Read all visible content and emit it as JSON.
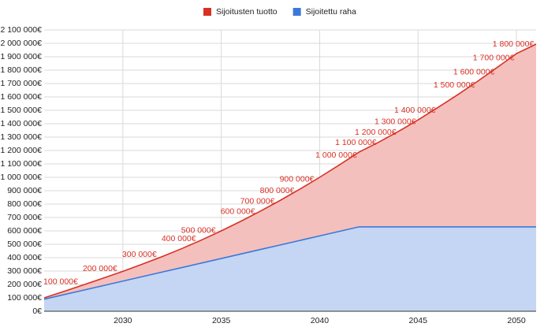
{
  "chart_data": {
    "type": "area",
    "x": [
      2026,
      2027,
      2028,
      2029,
      2030,
      2031,
      2032,
      2033,
      2034,
      2035,
      2036,
      2037,
      2038,
      2039,
      2040,
      2041,
      2042,
      2043,
      2044,
      2045,
      2046,
      2047,
      2048,
      2049,
      2050,
      2051
    ],
    "series": [
      {
        "name": "Sijoitusten tuotto",
        "color": "#d93025",
        "values": [
          100000,
          148000,
          197000,
          247000,
          298000,
          352000,
          408000,
          468000,
          532000,
          600000,
          672000,
          748000,
          828000,
          912000,
          1000000,
          1092000,
          1188000,
          1262000,
          1342000,
          1428000,
          1520000,
          1615000,
          1714000,
          1818000,
          1923000,
          1994000
        ]
      },
      {
        "name": "Sijoitettu raha",
        "color": "#3c78d8",
        "values": [
          90000,
          123750,
          157500,
          191250,
          225000,
          258750,
          292500,
          326250,
          360000,
          393750,
          427500,
          461250,
          495000,
          528750,
          562500,
          596250,
          630000,
          630000,
          630000,
          630000,
          630000,
          630000,
          630000,
          630000,
          630000,
          630000
        ]
      }
    ],
    "annotations": [
      {
        "x": 2027,
        "label": "100 000€"
      },
      {
        "x": 2029,
        "label": "200 000€"
      },
      {
        "x": 2031,
        "label": "300 000€"
      },
      {
        "x": 2033,
        "label": "400 000€"
      },
      {
        "x": 2034,
        "label": "500 000€"
      },
      {
        "x": 2036,
        "label": "600 000€"
      },
      {
        "x": 2037,
        "label": "700 000€"
      },
      {
        "x": 2038,
        "label": "800 000€"
      },
      {
        "x": 2039,
        "label": "900 000€"
      },
      {
        "x": 2041,
        "label": "1 000 000€"
      },
      {
        "x": 2042,
        "label": "1 100 000€"
      },
      {
        "x": 2043,
        "label": "1 200 000€"
      },
      {
        "x": 2044,
        "label": "1 300 000€"
      },
      {
        "x": 2045,
        "label": "1 400 000€"
      },
      {
        "x": 2047,
        "label": "1 500 000€"
      },
      {
        "x": 2048,
        "label": "1 600 000€"
      },
      {
        "x": 2049,
        "label": "1 700 000€"
      },
      {
        "x": 2050,
        "label": "1 800 000€"
      }
    ],
    "xlim": [
      2026,
      2051
    ],
    "xticks": [
      2030,
      2035,
      2040,
      2045,
      2050
    ],
    "ylim": [
      0,
      2100000
    ],
    "yticks": [
      {
        "value": 0,
        "label": "0€"
      },
      {
        "value": 100000,
        "label": "100 000€"
      },
      {
        "value": 200000,
        "label": "200 000€"
      },
      {
        "value": 300000,
        "label": "300 000€"
      },
      {
        "value": 400000,
        "label": "400 000€"
      },
      {
        "value": 500000,
        "label": "500 000€"
      },
      {
        "value": 600000,
        "label": "600 000€"
      },
      {
        "value": 700000,
        "label": "700 000€"
      },
      {
        "value": 800000,
        "label": "800 000€"
      },
      {
        "value": 900000,
        "label": "900 000€"
      },
      {
        "value": 1000000,
        "label": "1 000 000€"
      },
      {
        "value": 1100000,
        "label": "1 100 000€"
      },
      {
        "value": 1200000,
        "label": "1 200 000€"
      },
      {
        "value": 1300000,
        "label": "1 300 000€"
      },
      {
        "value": 1400000,
        "label": "1 400 000€"
      },
      {
        "value": 1500000,
        "label": "1 500 000€"
      },
      {
        "value": 1600000,
        "label": "1 600 000€"
      },
      {
        "value": 1700000,
        "label": "1 700 000€"
      },
      {
        "value": 1800000,
        "label": "1 800 000€"
      },
      {
        "value": 1900000,
        "label": "1 900 000€"
      },
      {
        "value": 2000000,
        "label": "2 000 000€"
      },
      {
        "value": 2100000,
        "label": "2 100 000€"
      }
    ],
    "grid": true,
    "legend": "top"
  }
}
